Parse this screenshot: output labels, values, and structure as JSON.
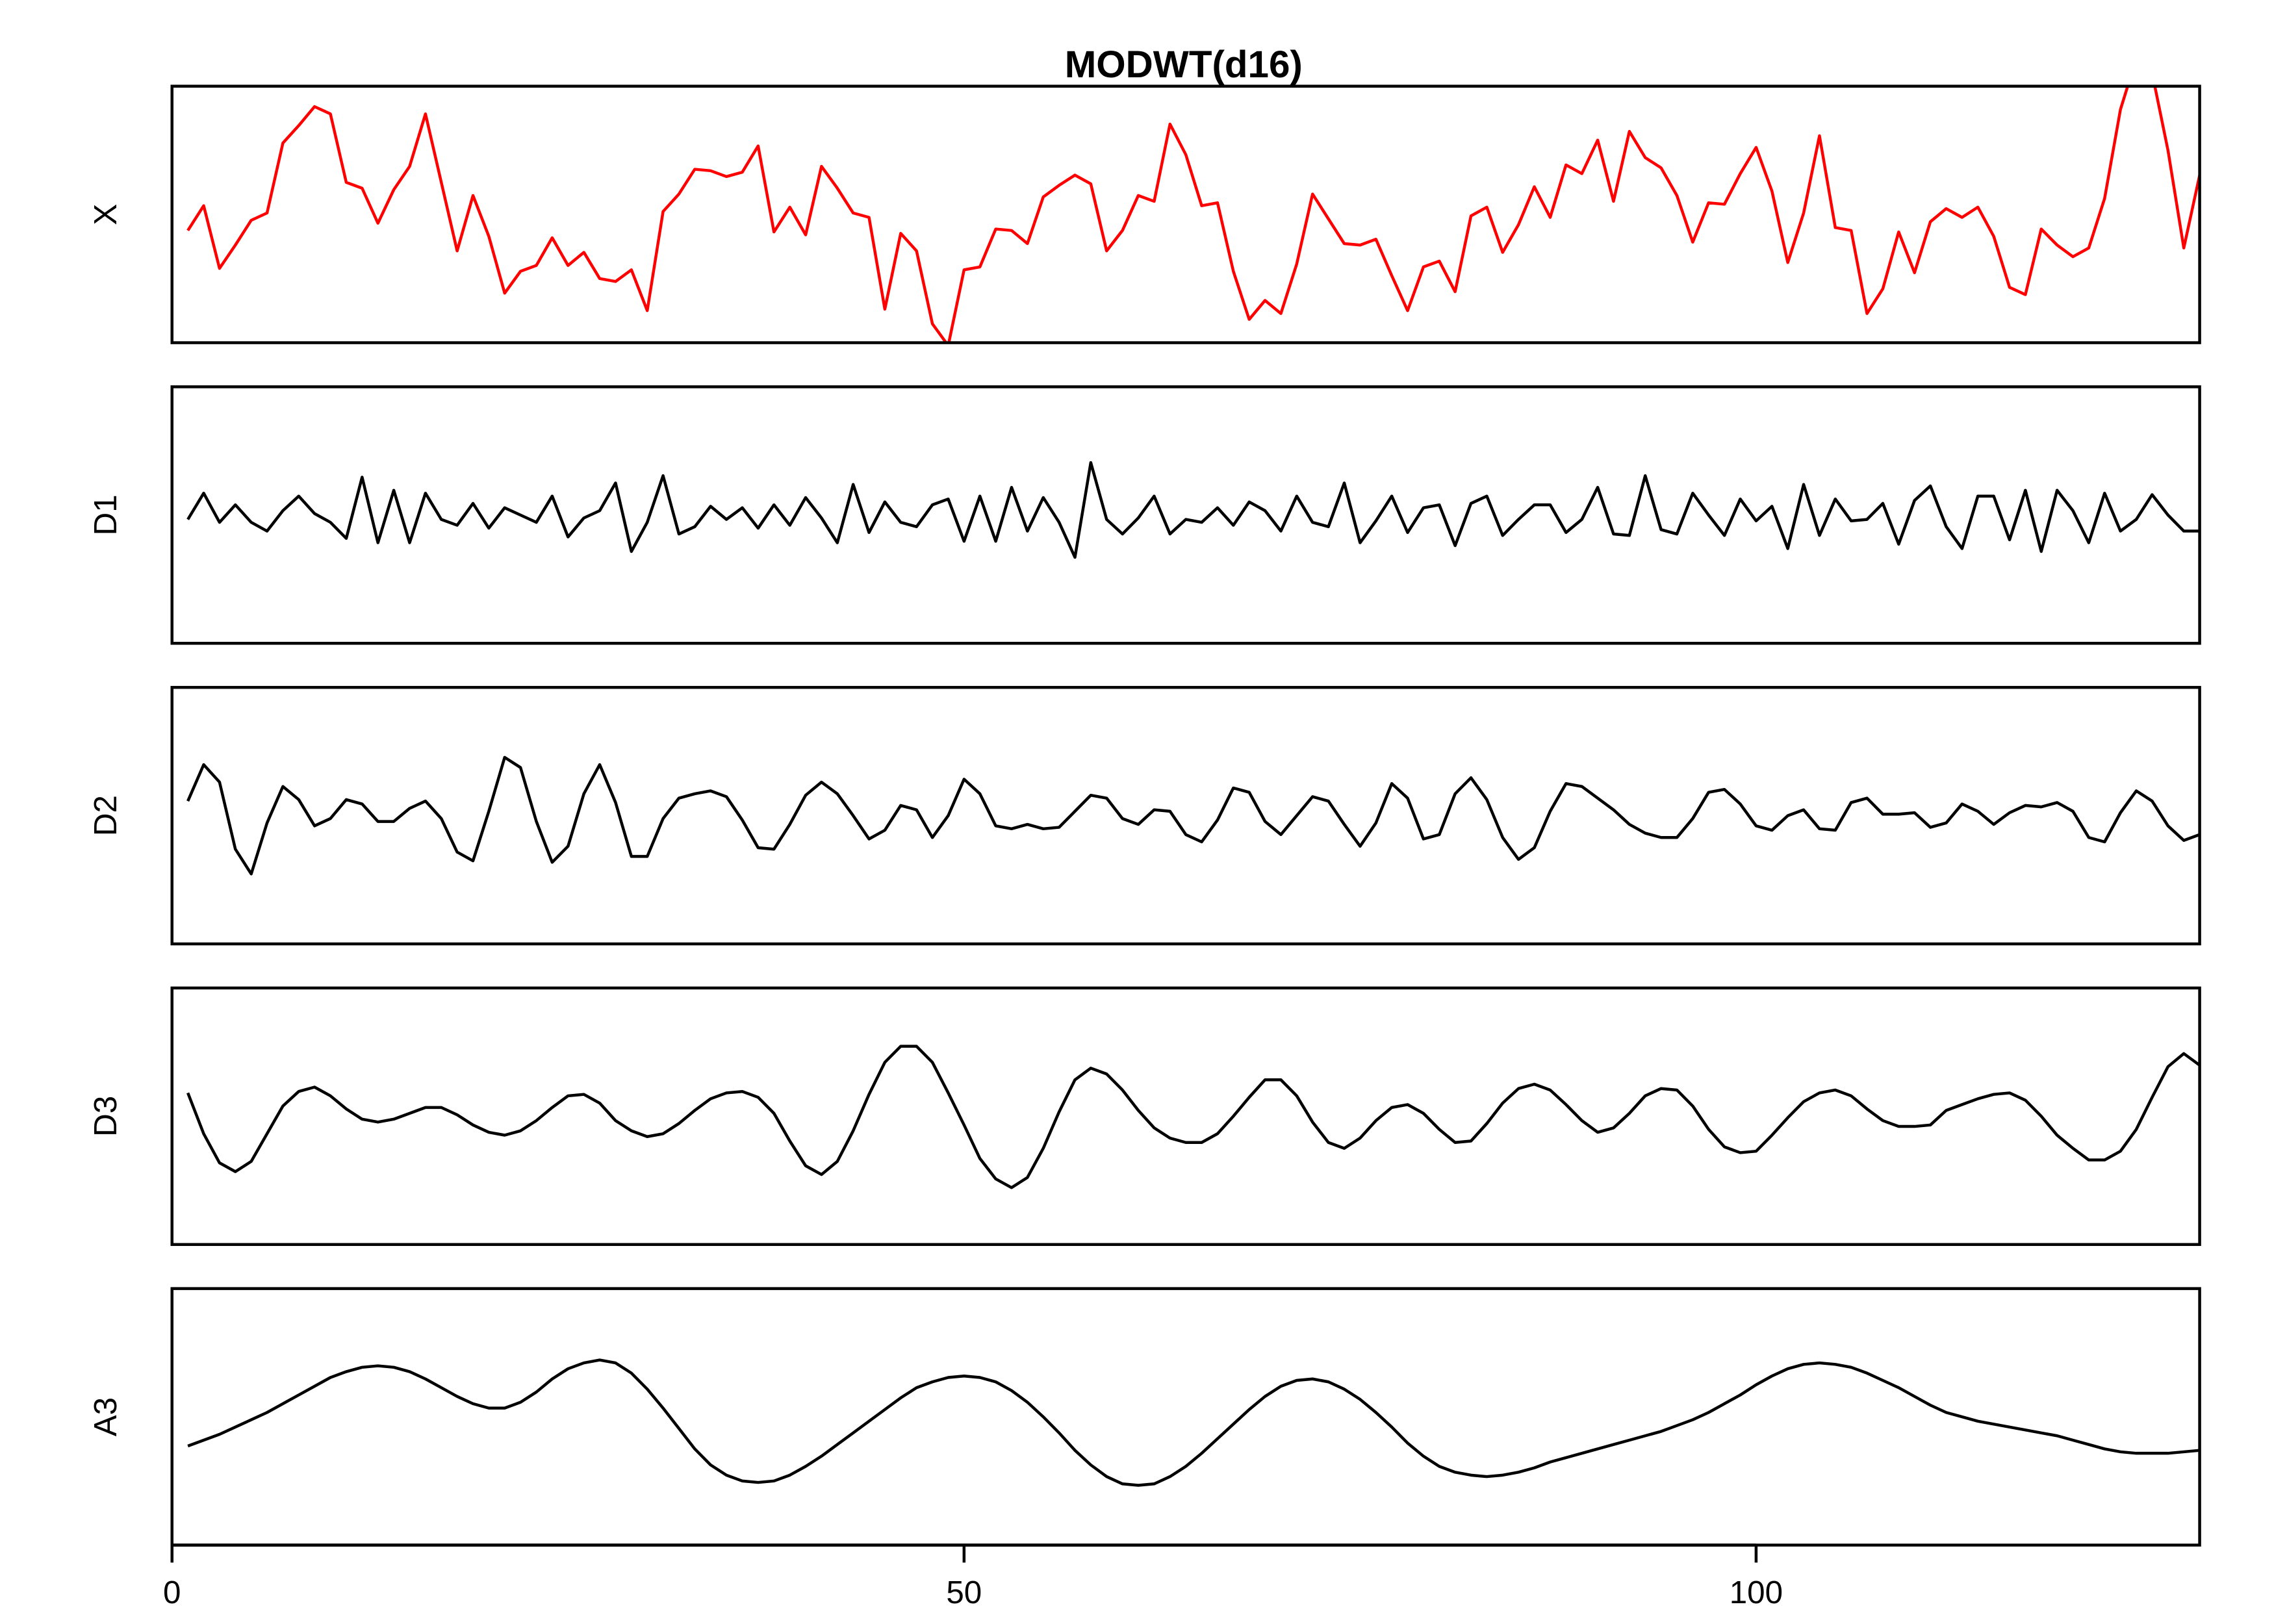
{
  "chart_data": {
    "type": "line",
    "title": "MODWT(d16)",
    "x": [
      1,
      2,
      3,
      4,
      5,
      6,
      7,
      8,
      9,
      10,
      11,
      12,
      13,
      14,
      15,
      16,
      17,
      18,
      19,
      20,
      21,
      22,
      23,
      24,
      25,
      26,
      27,
      28,
      29,
      30,
      31,
      32,
      33,
      34,
      35,
      36,
      37,
      38,
      39,
      40,
      41,
      42,
      43,
      44,
      45,
      46,
      47,
      48,
      49,
      50,
      51,
      52,
      53,
      54,
      55,
      56,
      57,
      58,
      59,
      60,
      61,
      62,
      63,
      64,
      65,
      66,
      67,
      68,
      69,
      70,
      71,
      72,
      73,
      74,
      75,
      76,
      77,
      78,
      79,
      80,
      81,
      82,
      83,
      84,
      85,
      86,
      87,
      88,
      89,
      90,
      91,
      92,
      93,
      94,
      95,
      96,
      97,
      98,
      99,
      100,
      101,
      102,
      103,
      104,
      105,
      106,
      107,
      108,
      109,
      110,
      111,
      112,
      113,
      114,
      115,
      116,
      117,
      118,
      119,
      120,
      121,
      122,
      123,
      124,
      125,
      126,
      127,
      128
    ],
    "xlim": [
      0,
      128
    ],
    "xticks": [
      0,
      50,
      100
    ],
    "series": [
      {
        "name": "X",
        "color": "#ff0000",
        "ylim": [
          0,
          176
        ],
        "values": [
          77,
          94,
          51,
          67,
          84,
          89,
          137,
          149,
          162,
          157,
          110,
          106,
          82,
          105,
          121,
          157,
          110,
          63,
          101,
          73,
          34,
          49,
          53,
          72,
          53,
          62,
          44,
          42,
          50,
          22,
          90,
          102,
          119,
          118,
          114,
          117,
          135,
          76,
          93,
          74,
          121,
          106,
          89,
          86,
          23,
          75,
          63,
          13,
          -2,
          50,
          52,
          78,
          77,
          68,
          100,
          108,
          115,
          109,
          63,
          77,
          101,
          97,
          150,
          129,
          94,
          96,
          49,
          16,
          29,
          20,
          54,
          102,
          85,
          68,
          67,
          71,
          46,
          22,
          52,
          56,
          35,
          87,
          93,
          62,
          81,
          107,
          86,
          122,
          116,
          139,
          97,
          145,
          127,
          120,
          101,
          69,
          96,
          95,
          116,
          134,
          104,
          55,
          89,
          142,
          79,
          77,
          20,
          37,
          76,
          48,
          83,
          92,
          86,
          93,
          73,
          38,
          33,
          78,
          67,
          59,
          65,
          99,
          160,
          195,
          185,
          132,
          65,
          115
        ]
      },
      {
        "name": "D1",
        "color": "#000000",
        "ylim": [
          0,
          176
        ],
        "values": [
          85,
          103,
          83,
          95,
          83,
          77,
          91,
          101,
          89,
          83,
          72,
          114,
          69,
          105,
          69,
          103,
          85,
          81,
          96,
          79,
          93,
          88,
          83,
          101,
          73,
          86,
          91,
          110,
          63,
          83,
          115,
          75,
          80,
          94,
          85,
          93,
          79,
          95,
          81,
          100,
          86,
          69,
          109,
          76,
          97,
          83,
          80,
          95,
          99,
          70,
          101,
          70,
          107,
          77,
          100,
          83,
          59,
          124,
          85,
          75,
          86,
          101,
          75,
          85,
          83,
          93,
          81,
          97,
          91,
          77,
          101,
          83,
          80,
          110,
          69,
          84,
          101,
          76,
          93,
          95,
          67,
          96,
          101,
          74,
          85,
          95,
          95,
          76,
          85,
          107,
          75,
          74,
          115,
          78,
          75,
          103,
          88,
          74,
          99,
          84,
          94,
          65,
          109,
          74,
          99,
          84,
          85,
          96,
          68,
          98,
          108,
          80,
          65,
          101,
          101,
          71,
          105,
          63,
          105,
          91,
          69,
          103,
          77,
          85,
          102,
          88,
          77,
          77
        ]
      },
      {
        "name": "D2",
        "color": "#000000",
        "ylim": [
          0,
          176
        ],
        "values": [
          98,
          123,
          111,
          65,
          48,
          83,
          108,
          99,
          81,
          86,
          99,
          96,
          84,
          84,
          93,
          98,
          86,
          63,
          57,
          91,
          128,
          121,
          84,
          56,
          67,
          103,
          123,
          97,
          60,
          60,
          86,
          100,
          103,
          105,
          101,
          85,
          66,
          65,
          82,
          102,
          111,
          103,
          88,
          72,
          78,
          95,
          92,
          73,
          88,
          113,
          103,
          81,
          79,
          82,
          79,
          80,
          91,
          102,
          100,
          86,
          82,
          92,
          91,
          75,
          70,
          85,
          107,
          104,
          84,
          75,
          88,
          101,
          98,
          82,
          67,
          83,
          110,
          100,
          72,
          75,
          103,
          114,
          99,
          73,
          58,
          66,
          91,
          110,
          108,
          100,
          92,
          82,
          76,
          73,
          73,
          86,
          104,
          106,
          96,
          81,
          78,
          88,
          92,
          79,
          78,
          97,
          100,
          89,
          89,
          90,
          80,
          83,
          96,
          91,
          82,
          90,
          95,
          94,
          97,
          91,
          73,
          70,
          90,
          105,
          98,
          81,
          71,
          75
        ]
      },
      {
        "name": "D3",
        "color": "#000000",
        "ylim": [
          0,
          176
        ],
        "values": [
          104,
          76,
          56,
          50,
          57,
          76,
          95,
          105,
          108,
          102,
          93,
          86,
          84,
          86,
          90,
          94,
          94,
          89,
          82,
          77,
          75,
          78,
          85,
          94,
          102,
          103,
          97,
          85,
          78,
          74,
          76,
          83,
          92,
          100,
          104,
          105,
          101,
          90,
          71,
          54,
          48,
          57,
          78,
          103,
          125,
          136,
          136,
          125,
          104,
          82,
          59,
          45,
          39,
          46,
          66,
          91,
          113,
          121,
          117,
          106,
          92,
          80,
          73,
          70,
          70,
          76,
          88,
          101,
          113,
          113,
          102,
          84,
          70,
          66,
          73,
          85,
          94,
          96,
          90,
          79,
          70,
          71,
          83,
          97,
          107,
          110,
          106,
          96,
          85,
          77,
          80,
          90,
          102,
          107,
          106,
          95,
          79,
          67,
          63,
          64,
          75,
          87,
          98,
          104,
          106,
          102,
          93,
          85,
          81,
          81,
          82,
          92,
          96,
          100,
          103,
          104,
          99,
          88,
          75,
          66,
          58,
          58,
          64,
          79,
          101,
          122,
          131,
          123
        ]
      },
      {
        "name": "A3",
        "color": "#000000",
        "ylim": [
          0,
          176
        ],
        "values": [
          68,
          72,
          76,
          81,
          86,
          91,
          97,
          103,
          109,
          115,
          119,
          122,
          123,
          122,
          119,
          114,
          108,
          102,
          97,
          94,
          94,
          98,
          105,
          114,
          121,
          125,
          127,
          125,
          118,
          107,
          94,
          80,
          66,
          55,
          48,
          44,
          43,
          44,
          48,
          54,
          61,
          69,
          77,
          85,
          93,
          101,
          108,
          112,
          115,
          116,
          115,
          112,
          106,
          98,
          88,
          77,
          65,
          55,
          47,
          42,
          41,
          42,
          47,
          54,
          63,
          73,
          83,
          93,
          102,
          109,
          113,
          114,
          112,
          107,
          100,
          91,
          81,
          70,
          61,
          54,
          50,
          48,
          47,
          48,
          50,
          53,
          57,
          60,
          63,
          66,
          69,
          72,
          75,
          78,
          82,
          86,
          91,
          97,
          103,
          110,
          116,
          121,
          124,
          125,
          124,
          122,
          118,
          113,
          108,
          102,
          96,
          91,
          88,
          85,
          83,
          81,
          79,
          77,
          75,
          72,
          69,
          66,
          64,
          63,
          63,
          63,
          64,
          65
        ]
      }
    ]
  }
}
